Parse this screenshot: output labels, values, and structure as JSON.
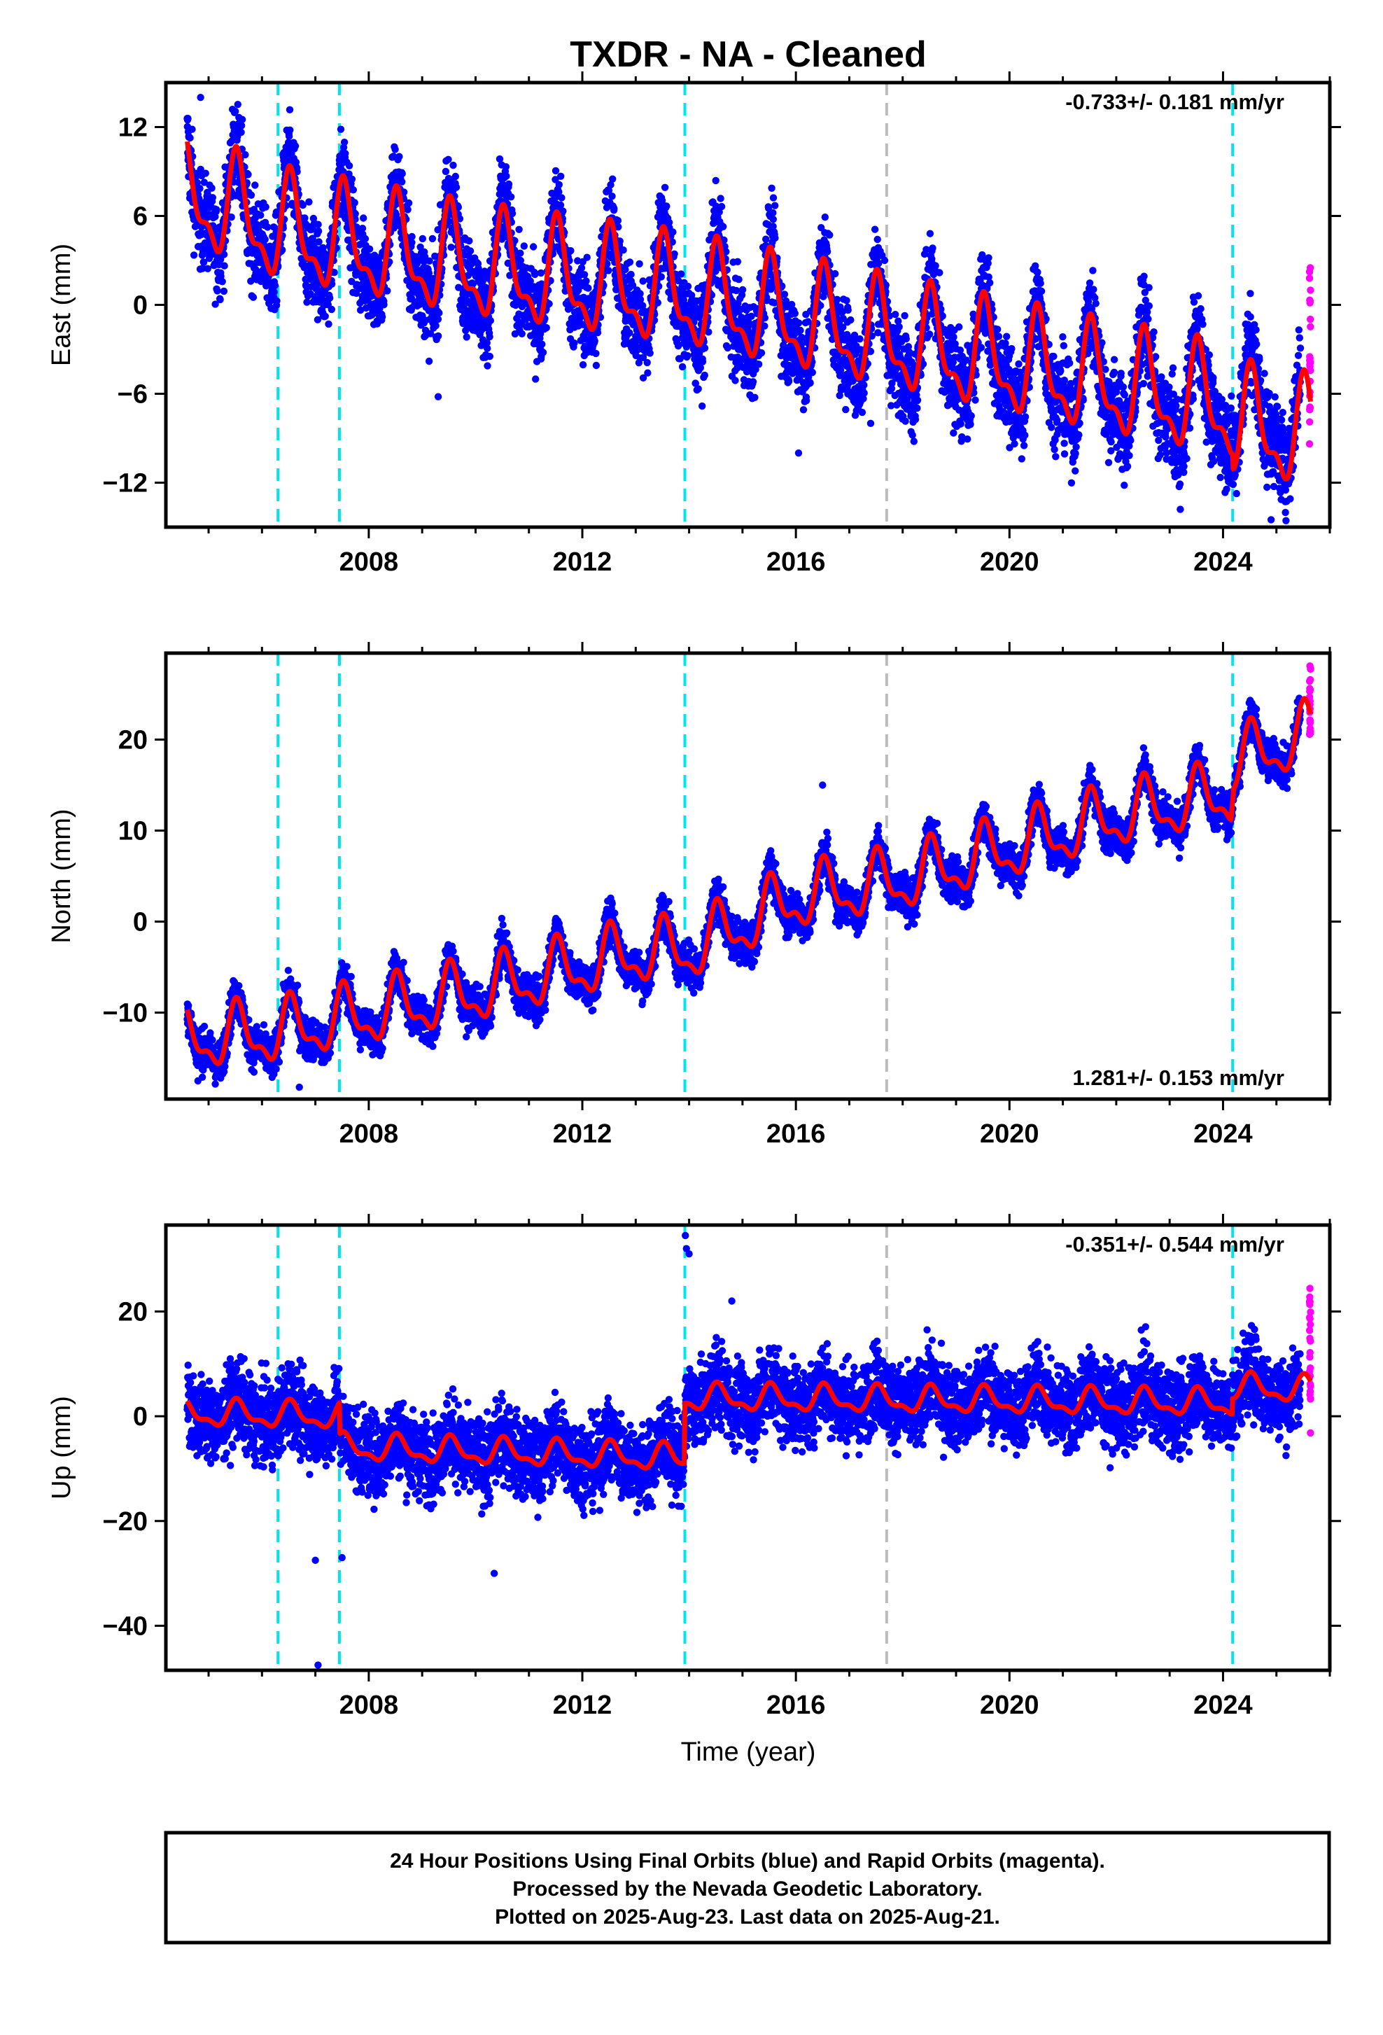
{
  "title": "TXDR  - NA - Cleaned",
  "x_axis_label": "Time (year)",
  "x_ticks": [
    2008,
    2012,
    2016,
    2020,
    2024
  ],
  "xlim": [
    2004.2,
    2026.0
  ],
  "data_start": 2004.6,
  "data_end": 2025.64,
  "rapid_start": 2025.45,
  "colors": {
    "final": "#0000ff",
    "rapid": "#ff00ff",
    "model": "#ff0000",
    "equipment_change": "#00e5ee",
    "other_event": "#bbbbbb"
  },
  "events": [
    {
      "year": 2006.3,
      "type": "equipment_change"
    },
    {
      "year": 2007.45,
      "type": "equipment_change"
    },
    {
      "year": 2013.92,
      "type": "equipment_change"
    },
    {
      "year": 2017.7,
      "type": "other_event"
    },
    {
      "year": 2024.18,
      "type": "equipment_change"
    }
  ],
  "footer": {
    "lines": [
      "24 Hour Positions Using Final Orbits (blue) and Rapid Orbits (magenta).",
      "Processed by the Nevada Geodetic Laboratory.",
      "Plotted on 2025-Aug-23. Last data on 2025-Aug-21."
    ]
  },
  "chart_data": [
    {
      "type": "scatter",
      "component": "east",
      "ylabel": "East (mm)",
      "ylim": [
        -15,
        15
      ],
      "yticks": [
        12,
        6,
        0,
        -6,
        -12
      ],
      "rate": "-0.733+/- 0.181 mm/yr",
      "rate_position": "top-right",
      "model": {
        "amplitude": 3.2,
        "trend_points": [
          [
            2004.6,
            7.5
          ],
          [
            2006.3,
            5.0
          ],
          [
            2010,
            2.5
          ],
          [
            2014,
            0.5
          ],
          [
            2018,
            -2.5
          ],
          [
            2022,
            -5.5
          ],
          [
            2025.64,
            -8.0
          ]
        ],
        "offsets": [
          {
            "year": 2024.18,
            "value": -1.0
          }
        ]
      },
      "scatter": {
        "spread": 2.2,
        "outliers": [
          [
            2004.85,
            14.0
          ],
          [
            2009.3,
            -6.2
          ],
          [
            2016.05,
            -10.0
          ],
          [
            2017.4,
            -8.0
          ],
          [
            2024.9,
            -14.5
          ],
          [
            2023.2,
            -13.8
          ]
        ]
      },
      "rapid": {
        "min": -9.5,
        "max": 2.8
      }
    },
    {
      "type": "scatter",
      "component": "north",
      "ylabel": "North (mm)",
      "ylim": [
        -19.5,
        29.5
      ],
      "yticks": [
        20,
        10,
        0,
        -10
      ],
      "rate": "1.281+/- 0.153 mm/yr",
      "rate_position": "bottom-right",
      "model": {
        "amplitude": 3.0,
        "trend_points": [
          [
            2004.6,
            -13
          ],
          [
            2006.3,
            -12.2
          ],
          [
            2010,
            -7.8
          ],
          [
            2013,
            -3.5
          ],
          [
            2014,
            -3.2
          ],
          [
            2016,
            2.5
          ],
          [
            2018,
            4.5
          ],
          [
            2020,
            8.0
          ],
          [
            2022,
            11.5
          ],
          [
            2024.15,
            14.0
          ],
          [
            2024.2,
            17.5
          ],
          [
            2025.64,
            20.5
          ]
        ],
        "offsets": []
      },
      "scatter": {
        "spread": 1.6,
        "outliers": [
          [
            2006.7,
            -18.2
          ],
          [
            2016.5,
            15.0
          ],
          [
            2004.8,
            -17.5
          ]
        ]
      },
      "rapid": {
        "min": 20.5,
        "max": 28.5
      }
    },
    {
      "type": "scatter",
      "component": "up",
      "ylabel": "Up (mm)",
      "ylim": [
        -48.5,
        36.5
      ],
      "yticks": [
        20,
        0,
        -20,
        -40
      ],
      "rate": "-0.351+/- 0.544 mm/yr",
      "rate_position": "top-right",
      "model": {
        "amplitude": 2.2,
        "trend_points": [
          [
            2004.6,
            0.5
          ],
          [
            2007.45,
            0.0
          ],
          [
            2007.46,
            -6.0
          ],
          [
            2013.91,
            -8.0
          ],
          [
            2013.92,
            3.5
          ],
          [
            2024.17,
            2.5
          ],
          [
            2024.18,
            5.5
          ],
          [
            2025.64,
            5.0
          ]
        ],
        "offsets": []
      },
      "scatter": {
        "spread": 5.5,
        "outliers": [
          [
            2013.93,
            34.5
          ],
          [
            2013.95,
            32.0
          ],
          [
            2014.0,
            31.0
          ],
          [
            2007.05,
            -47.5
          ],
          [
            2007.0,
            -27.5
          ],
          [
            2007.5,
            -27.0
          ],
          [
            2010.35,
            -30.0
          ],
          [
            2014.8,
            22.0
          ]
        ]
      },
      "rapid": {
        "min": -4.0,
        "max": 25.0
      }
    }
  ]
}
